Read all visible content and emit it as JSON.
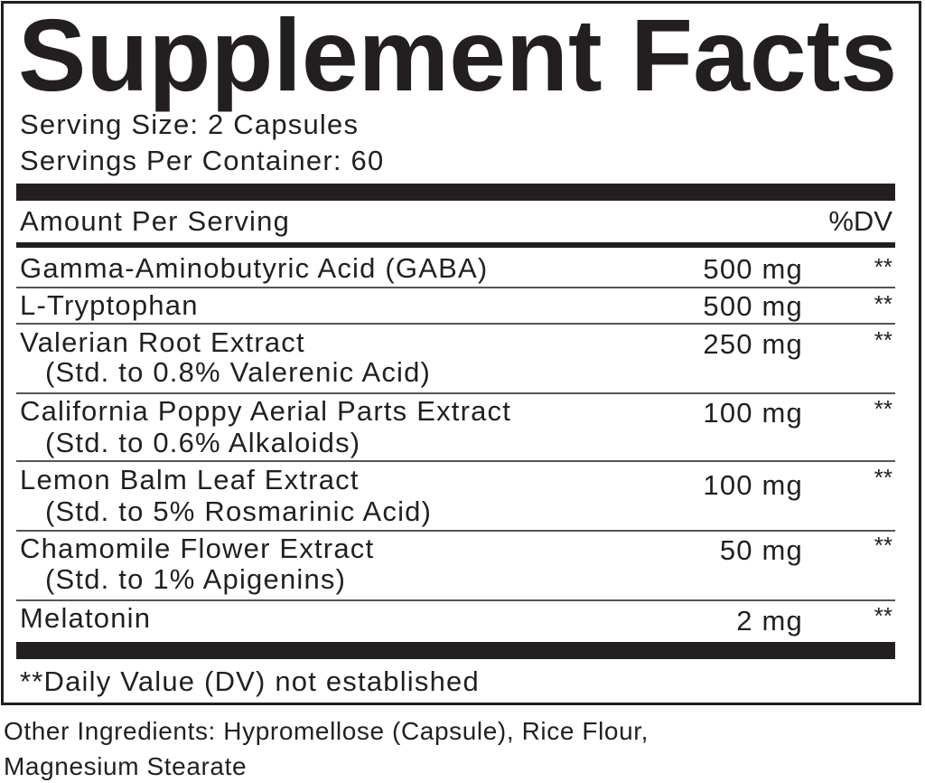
{
  "title": "Supplement Facts",
  "serving_size": "Serving Size: 2 Capsules",
  "servings_per_container": "Servings Per Container: 60",
  "header": {
    "amount": "Amount Per Serving",
    "dv": "%DV"
  },
  "ingredients": [
    {
      "name": "Gamma-Aminobutyric Acid (GABA)",
      "sub": "",
      "amount": "500 mg",
      "dv": "**"
    },
    {
      "name": "L-Tryptophan",
      "sub": "",
      "amount": "500 mg",
      "dv": "**"
    },
    {
      "name": "Valerian Root Extract",
      "sub": "(Std. to 0.8% Valerenic Acid)",
      "amount": "250 mg",
      "dv": "**"
    },
    {
      "name": "California Poppy Aerial Parts Extract",
      "sub": "(Std. to 0.6% Alkaloids)",
      "amount": "100 mg",
      "dv": "**"
    },
    {
      "name": "Lemon Balm Leaf Extract",
      "sub": "(Std. to 5% Rosmarinic Acid)",
      "amount": "100 mg",
      "dv": "**"
    },
    {
      "name": "Chamomile Flower Extract",
      "sub": "(Std. to 1% Apigenins)",
      "amount": "50 mg",
      "dv": "**"
    },
    {
      "name": "Melatonin",
      "sub": "",
      "amount": "2 mg",
      "dv": "**"
    }
  ],
  "footnote": "**Daily Value (DV) not established",
  "other_ingredients": {
    "line1": "Other Ingredients: Hypromellose (Capsule), Rice Flour,",
    "line2": "Magnesium Stearate"
  }
}
